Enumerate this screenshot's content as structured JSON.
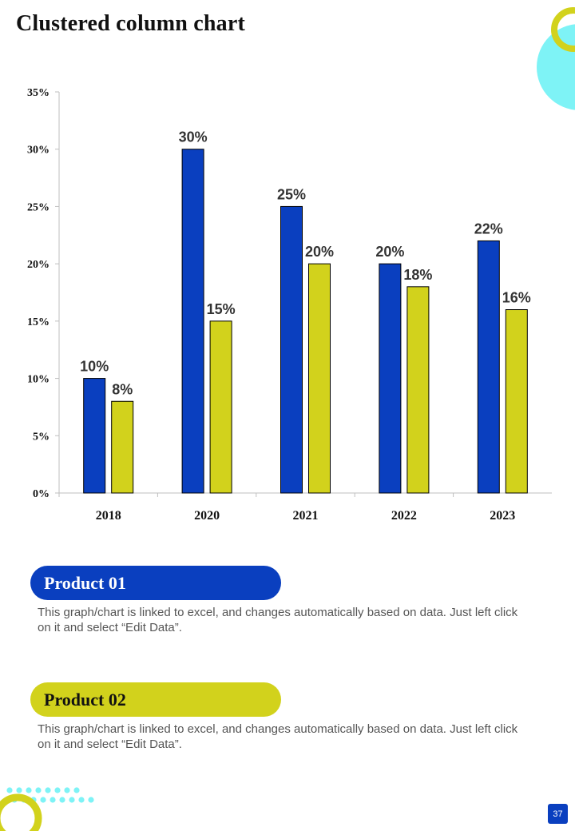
{
  "page": {
    "title": "Clustered column chart",
    "page_number": "37"
  },
  "colors": {
    "blue": "#0a3fbf",
    "lime": "#d2d21c",
    "aqua": "#7ef3f6",
    "text_dark": "#111111",
    "axis": "#bfbfbf"
  },
  "chart_data": {
    "type": "bar",
    "title": "",
    "xlabel": "",
    "ylabel": "",
    "categories": [
      "2018",
      "2020",
      "2021",
      "2022",
      "2023"
    ],
    "series": [
      {
        "name": "Product 01",
        "values": [
          10,
          30,
          25,
          20,
          22
        ],
        "labels": [
          "10%",
          "30%",
          "25%",
          "20%",
          "22%"
        ]
      },
      {
        "name": "Product 02",
        "values": [
          8,
          15,
          20,
          18,
          16
        ],
        "labels": [
          "8%",
          "15%",
          "20%",
          "18%",
          "16%"
        ]
      }
    ],
    "ylim": [
      0,
      35
    ],
    "yticks": [
      0,
      5,
      10,
      15,
      20,
      25,
      30,
      35
    ],
    "ytick_labels": [
      "0%",
      "5%",
      "10%",
      "15%",
      "20%",
      "25%",
      "30%",
      "35%"
    ],
    "grid": false,
    "legend": "none"
  },
  "products": [
    {
      "name": "Product 01",
      "description": "This graph/chart is linked to excel, and changes automatically based on data. Just left click on it and select “Edit Data”."
    },
    {
      "name": "Product 02",
      "description": "This graph/chart is linked to excel, and changes automatically based on data. Just left click on it and select “Edit Data”."
    }
  ]
}
